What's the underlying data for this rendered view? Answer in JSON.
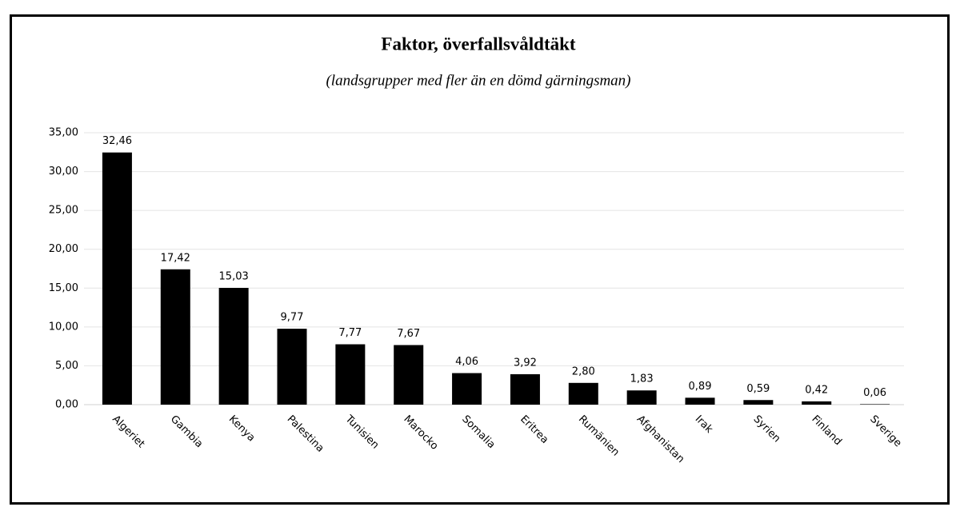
{
  "chart_data": {
    "type": "bar",
    "title": "Faktor, överfallsvåldtäkt",
    "subtitle": "(landsgrupper med fler än en dömd gärningsman)",
    "categories": [
      "Algeriet",
      "Gambia",
      "Kenya",
      "Palestina",
      "Tunisien",
      "Marocko",
      "Somalia",
      "Eritrea",
      "Rumänien",
      "Afghanistan",
      "Irak",
      "Syrien",
      "Finland",
      "Sverige"
    ],
    "values": [
      32.46,
      17.42,
      15.03,
      9.77,
      7.77,
      7.67,
      4.06,
      3.92,
      2.8,
      1.83,
      0.89,
      0.59,
      0.42,
      0.06
    ],
    "value_labels": [
      "32,46",
      "17,42",
      "15,03",
      "9,77",
      "7,77",
      "7,67",
      "4,06",
      "3,92",
      "2,80",
      "1,83",
      "0,89",
      "0,59",
      "0,42",
      "0,06"
    ],
    "color": "#000000",
    "ylim": [
      0,
      35
    ],
    "yticks": [
      {
        "value": 0,
        "label": "0,00"
      },
      {
        "value": 5,
        "label": "5,00"
      },
      {
        "value": 10,
        "label": "10,00"
      },
      {
        "value": 15,
        "label": "15,00"
      },
      {
        "value": 20,
        "label": "20,00"
      },
      {
        "value": 25,
        "label": "25,00"
      },
      {
        "value": 30,
        "label": "30,00"
      },
      {
        "value": 35,
        "label": "35,00"
      }
    ],
    "grid": true
  }
}
